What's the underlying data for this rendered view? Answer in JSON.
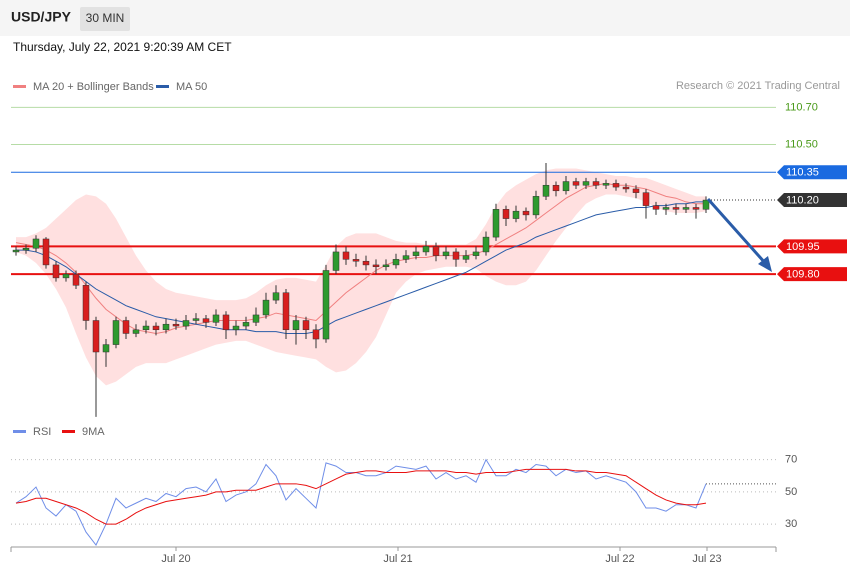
{
  "header": {
    "symbol": "USD/JPY",
    "interval": "30 MIN",
    "timestamp": "Thursday, July 22, 2021 9:20:39 AM CET"
  },
  "credit": "Research © 2021 Trading Central",
  "chart_data": [
    {
      "type": "candlestick",
      "up_color": "#2e9a2e",
      "down_color": "#d81e1e",
      "candles": [
        [
          109.92,
          109.95,
          109.9,
          109.93
        ],
        [
          109.93,
          109.96,
          109.91,
          109.94
        ],
        [
          109.94,
          110.01,
          109.92,
          109.99
        ],
        [
          109.99,
          110.0,
          109.83,
          109.85
        ],
        [
          109.85,
          109.87,
          109.76,
          109.78
        ],
        [
          109.78,
          109.82,
          109.76,
          109.8
        ],
        [
          109.8,
          109.82,
          109.72,
          109.74
        ],
        [
          109.74,
          109.76,
          109.5,
          109.55
        ],
        [
          109.55,
          109.57,
          109.03,
          109.38
        ],
        [
          109.38,
          109.45,
          109.3,
          109.42
        ],
        [
          109.42,
          109.57,
          109.4,
          109.55
        ],
        [
          109.55,
          109.57,
          109.45,
          109.48
        ],
        [
          109.48,
          109.53,
          109.46,
          109.5
        ],
        [
          109.5,
          109.55,
          109.48,
          109.52
        ],
        [
          109.52,
          109.54,
          109.47,
          109.5
        ],
        [
          109.5,
          109.56,
          109.48,
          109.53
        ],
        [
          109.53,
          109.56,
          109.5,
          109.52
        ],
        [
          109.52,
          109.58,
          109.5,
          109.55
        ],
        [
          109.55,
          109.59,
          109.53,
          109.56
        ],
        [
          109.56,
          109.58,
          109.51,
          109.54
        ],
        [
          109.54,
          109.61,
          109.52,
          109.58
        ],
        [
          109.58,
          109.6,
          109.45,
          109.5
        ],
        [
          109.5,
          109.55,
          109.47,
          109.52
        ],
        [
          109.52,
          109.57,
          109.5,
          109.54
        ],
        [
          109.54,
          109.62,
          109.52,
          109.58
        ],
        [
          109.58,
          109.7,
          109.56,
          109.66
        ],
        [
          109.66,
          109.74,
          109.64,
          109.7
        ],
        [
          109.7,
          109.72,
          109.45,
          109.5
        ],
        [
          109.5,
          109.58,
          109.42,
          109.55
        ],
        [
          109.55,
          109.57,
          109.45,
          109.5
        ],
        [
          109.5,
          109.53,
          109.4,
          109.45
        ],
        [
          109.45,
          109.85,
          109.43,
          109.82
        ],
        [
          109.82,
          109.96,
          109.8,
          109.92
        ],
        [
          109.92,
          109.95,
          109.85,
          109.88
        ],
        [
          109.88,
          109.91,
          109.84,
          109.87
        ],
        [
          109.87,
          109.9,
          109.82,
          109.85
        ],
        [
          109.85,
          109.88,
          109.8,
          109.84
        ],
        [
          109.84,
          109.88,
          109.82,
          109.85
        ],
        [
          109.85,
          109.91,
          109.83,
          109.88
        ],
        [
          109.88,
          109.93,
          109.86,
          109.9
        ],
        [
          109.9,
          109.95,
          109.88,
          109.92
        ],
        [
          109.92,
          109.98,
          109.9,
          109.95
        ],
        [
          109.95,
          109.97,
          109.87,
          109.9
        ],
        [
          109.9,
          109.95,
          109.88,
          109.92
        ],
        [
          109.92,
          109.94,
          109.84,
          109.88
        ],
        [
          109.88,
          109.93,
          109.86,
          109.9
        ],
        [
          109.9,
          109.95,
          109.88,
          109.92
        ],
        [
          109.92,
          110.03,
          109.9,
          110.0
        ],
        [
          110.0,
          110.18,
          109.98,
          110.15
        ],
        [
          110.15,
          110.17,
          110.06,
          110.1
        ],
        [
          110.1,
          110.17,
          110.08,
          110.14
        ],
        [
          110.14,
          110.16,
          110.09,
          110.12
        ],
        [
          110.12,
          110.25,
          110.1,
          110.22
        ],
        [
          110.22,
          110.4,
          110.2,
          110.28
        ],
        [
          110.28,
          110.3,
          110.22,
          110.25
        ],
        [
          110.25,
          110.33,
          110.23,
          110.3
        ],
        [
          110.3,
          110.32,
          110.26,
          110.28
        ],
        [
          110.28,
          110.32,
          110.26,
          110.3
        ],
        [
          110.3,
          110.32,
          110.26,
          110.28
        ],
        [
          110.28,
          110.31,
          110.26,
          110.29
        ],
        [
          110.29,
          110.31,
          110.25,
          110.27
        ],
        [
          110.27,
          110.29,
          110.24,
          110.26
        ],
        [
          110.26,
          110.28,
          110.21,
          110.24
        ],
        [
          110.24,
          110.26,
          110.1,
          110.17
        ],
        [
          110.17,
          110.19,
          110.12,
          110.15
        ],
        [
          110.15,
          110.18,
          110.12,
          110.16
        ],
        [
          110.16,
          110.18,
          110.12,
          110.15
        ],
        [
          110.15,
          110.18,
          110.13,
          110.16
        ],
        [
          110.16,
          110.18,
          110.1,
          110.15
        ],
        [
          110.15,
          110.22,
          110.13,
          110.2
        ]
      ],
      "series": [
        {
          "name": "MA 20 + Bollinger Bands",
          "color": "#f08080",
          "band_color": "#ffd6d6",
          "values": [
            109.97,
            109.96,
            109.95,
            109.93,
            109.9,
            109.86,
            109.81,
            109.74,
            109.67,
            109.61,
            109.57,
            109.53,
            109.5,
            109.49,
            109.48,
            109.49,
            109.51,
            109.52,
            109.53,
            109.54,
            109.55,
            109.55,
            109.55,
            109.55,
            109.56,
            109.57,
            109.59,
            109.58,
            109.57,
            109.56,
            109.55,
            109.6,
            109.65,
            109.7,
            109.74,
            109.78,
            109.82,
            109.85,
            109.87,
            109.88,
            109.89,
            109.89,
            109.9,
            109.9,
            109.9,
            109.9,
            109.91,
            109.93,
            109.96,
            109.99,
            110.02,
            110.05,
            110.09,
            110.13,
            110.17,
            110.21,
            110.24,
            110.27,
            110.28,
            110.29,
            110.28,
            110.28,
            110.27,
            110.26,
            110.24,
            110.22,
            110.21,
            110.19,
            110.18,
            110.18
          ],
          "band": {
            "upper": [
              110.0,
              110.0,
              110.02,
              110.05,
              110.1,
              110.15,
              110.2,
              110.23,
              110.22,
              110.18,
              110.1,
              110.0,
              109.9,
              109.82,
              109.76,
              109.72,
              109.7,
              109.69,
              109.68,
              109.67,
              109.66,
              109.66,
              109.66,
              109.67,
              109.7,
              109.74,
              109.77,
              109.78,
              109.78,
              109.77,
              109.76,
              109.85,
              109.95,
              110.0,
              110.02,
              110.02,
              110.02,
              110.0,
              109.98,
              109.97,
              109.97,
              109.96,
              109.96,
              109.96,
              109.96,
              109.96,
              109.99,
              110.07,
              110.17,
              110.24,
              110.28,
              110.31,
              110.34,
              110.36,
              110.37,
              110.37,
              110.37,
              110.36,
              110.35,
              110.34,
              110.33,
              110.33,
              110.32,
              110.32,
              110.3,
              110.28,
              110.26,
              110.24,
              110.22,
              110.22
            ],
            "lower": [
              109.92,
              109.9,
              109.86,
              109.8,
              109.72,
              109.62,
              109.48,
              109.35,
              109.25,
              109.2,
              109.22,
              109.26,
              109.3,
              109.32,
              109.32,
              109.32,
              109.34,
              109.36,
              109.38,
              109.4,
              109.42,
              109.43,
              109.44,
              109.44,
              109.42,
              109.4,
              109.38,
              109.37,
              109.36,
              109.35,
              109.34,
              109.3,
              109.27,
              109.28,
              109.32,
              109.38,
              109.46,
              109.58,
              109.7,
              109.76,
              109.8,
              109.82,
              109.83,
              109.84,
              109.84,
              109.84,
              109.83,
              109.79,
              109.76,
              109.74,
              109.74,
              109.76,
              109.82,
              109.9,
              109.98,
              110.05,
              110.12,
              110.18,
              110.21,
              110.23,
              110.23,
              110.22,
              110.21,
              110.19,
              110.16,
              110.14,
              110.13,
              110.13,
              110.13,
              110.14
            ]
          }
        },
        {
          "name": "MA 50",
          "color": "#2a5ca8",
          "values": [
            109.93,
            109.93,
            109.92,
            109.9,
            109.87,
            109.84,
            109.8,
            109.76,
            109.72,
            109.69,
            109.66,
            109.63,
            109.61,
            109.59,
            109.57,
            109.56,
            109.55,
            109.54,
            109.53,
            109.52,
            109.51,
            109.5,
            109.5,
            109.5,
            109.49,
            109.49,
            109.49,
            109.48,
            109.48,
            109.48,
            109.49,
            109.52,
            109.55,
            109.57,
            109.59,
            109.61,
            109.63,
            109.65,
            109.67,
            109.69,
            109.71,
            109.73,
            109.75,
            109.77,
            109.79,
            109.81,
            109.84,
            109.87,
            109.9,
            109.93,
            109.95,
            109.97,
            110.0,
            110.02,
            110.04,
            110.06,
            110.08,
            110.1,
            110.12,
            110.13,
            110.14,
            110.15,
            110.16,
            110.16,
            110.17,
            110.17,
            110.18,
            110.18,
            110.19,
            110.19
          ]
        }
      ],
      "levels": [
        {
          "value": 110.7,
          "label": "110.70",
          "color": "#4a9a1a",
          "style": "text"
        },
        {
          "value": 110.5,
          "label": "110.50",
          "color": "#4a9a1a",
          "style": "text"
        },
        {
          "value": 110.35,
          "label": "110.35",
          "color": "#1a6ae0",
          "style": "box"
        },
        {
          "value": 110.2,
          "label": "110.20",
          "color": "#333333",
          "style": "dotted"
        },
        {
          "value": 109.95,
          "label": "109.95",
          "color": "#e81010",
          "style": "bold"
        },
        {
          "value": 109.8,
          "label": "109.80",
          "color": "#e81010",
          "style": "bold"
        }
      ],
      "ylim": [
        109.04,
        110.74
      ],
      "xlim": [
        -0.5,
        76
      ],
      "xticks": [
        {
          "value": 16,
          "label": "Jul 20"
        },
        {
          "value": 38.2,
          "label": "Jul 21"
        },
        {
          "value": 60.4,
          "label": "Jul 22"
        },
        {
          "value": 69.1,
          "label": "Jul 23"
        }
      ]
    },
    {
      "type": "line",
      "series": [
        {
          "name": "RSI",
          "color": "#6f8ee8",
          "values": [
            43,
            47,
            53,
            40,
            35,
            42,
            38,
            25,
            17,
            30,
            46,
            40,
            43,
            46,
            44,
            49,
            47,
            52,
            53,
            50,
            58,
            44,
            48,
            50,
            55,
            67,
            60,
            45,
            52,
            46,
            40,
            68,
            66,
            62,
            62,
            60,
            60,
            62,
            66,
            65,
            64,
            66,
            58,
            62,
            58,
            60,
            56,
            70,
            60,
            60,
            64,
            62,
            67,
            66,
            60,
            64,
            62,
            63,
            58,
            60,
            58,
            56,
            50,
            40,
            40,
            38,
            42,
            42,
            40,
            55
          ]
        },
        {
          "name": "9MA",
          "color": "#e81010",
          "values": [
            43,
            44,
            46,
            46,
            44,
            42,
            40,
            37,
            33,
            30,
            30,
            33,
            37,
            40,
            42,
            44,
            45,
            46,
            47,
            48,
            50,
            50,
            51,
            51,
            51,
            53,
            55,
            55,
            55,
            54,
            52,
            55,
            58,
            61,
            62,
            63,
            63,
            62,
            62,
            62,
            63,
            63,
            63,
            63,
            62,
            62,
            61,
            62,
            62,
            62,
            63,
            64,
            64,
            64,
            64,
            64,
            63,
            63,
            62,
            62,
            61,
            60,
            56,
            52,
            48,
            45,
            43,
            42,
            42,
            43
          ]
        }
      ],
      "ylim": [
        17,
        76
      ],
      "xlim": [
        -0.5,
        76
      ],
      "yticks": [
        30,
        50,
        70
      ]
    }
  ]
}
